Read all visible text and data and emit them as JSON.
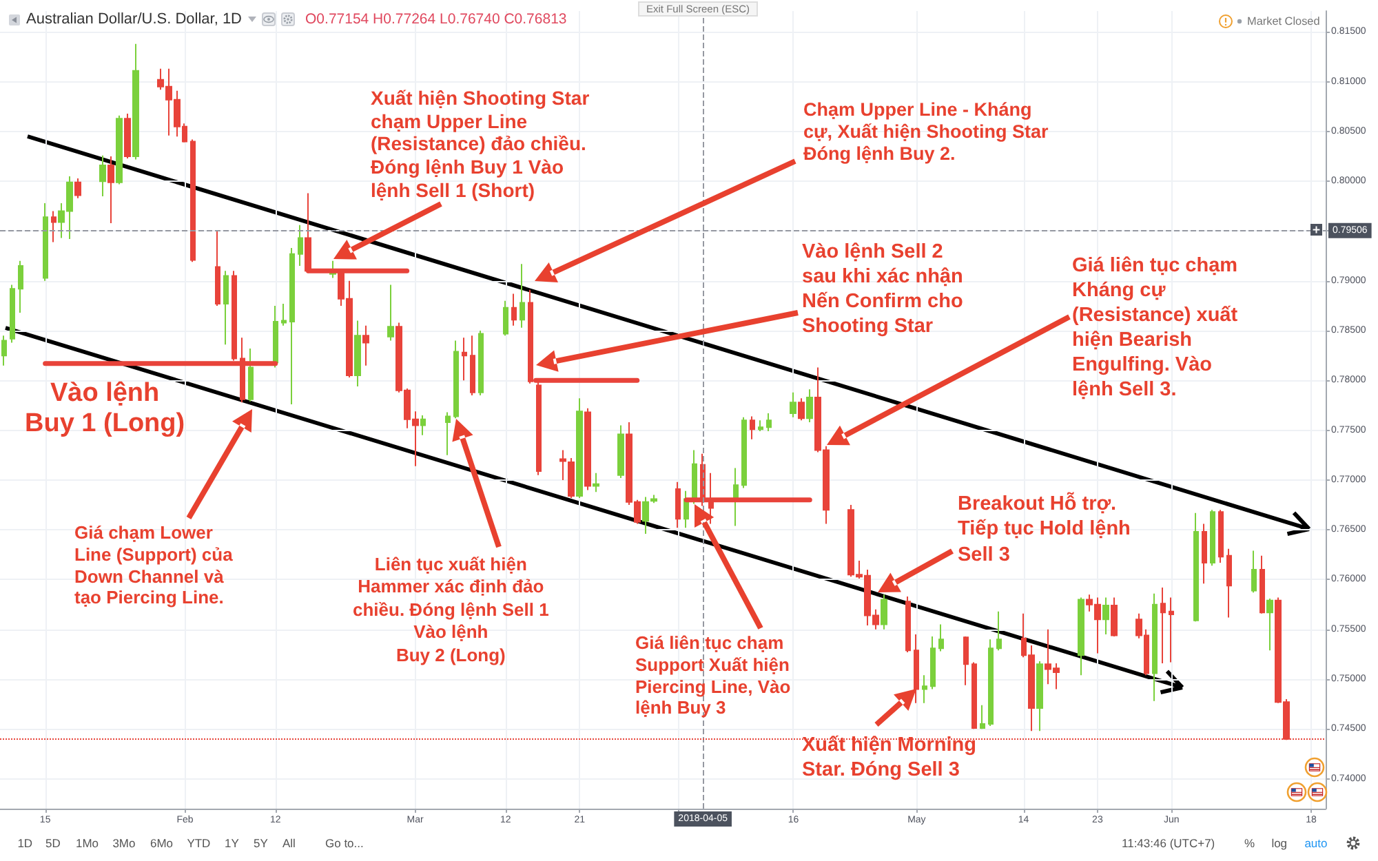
{
  "chart_data": {
    "type": "candlestick",
    "title": "Australian Dollar/U.S. Dollar, 1D",
    "subtitle": "O0.77154 H0.77264 L0.76740 C0.76813",
    "xlim": [
      "2018-01-09T12:00",
      "2018-06-19T18:00"
    ],
    "xticks": [
      {
        "value": "2018-01-15",
        "label": "15"
      },
      {
        "value": "2018-02-01",
        "label": "Feb"
      },
      {
        "value": "2018-02-12",
        "label": "12"
      },
      {
        "value": "2018-03-01",
        "label": "Mar"
      },
      {
        "value": "2018-03-12",
        "label": "12"
      },
      {
        "value": "2018-03-21",
        "label": "21"
      },
      {
        "value": "2018-04-02",
        "label": null
      },
      {
        "value": "2018-04-16",
        "label": "16"
      },
      {
        "value": "2018-05-01",
        "label": "May"
      },
      {
        "value": "2018-05-14",
        "label": "14"
      },
      {
        "value": "2018-05-23",
        "label": "23"
      },
      {
        "value": "2018-06-01",
        "label": "Jun"
      },
      {
        "value": "2018-06-18",
        "label": "18"
      }
    ],
    "ylim": [
      0.737,
      0.8171
    ],
    "yticks": [
      {
        "value": 0.74,
        "label": "0.74000"
      },
      {
        "value": 0.745,
        "label": "0.74500"
      },
      {
        "value": 0.75,
        "label": "0.75000"
      },
      {
        "value": 0.755,
        "label": "0.75500"
      },
      {
        "value": 0.76,
        "label": "0.76000"
      },
      {
        "value": 0.765,
        "label": "0.76500"
      },
      {
        "value": 0.77,
        "label": "0.77000"
      },
      {
        "value": 0.775,
        "label": "0.77500"
      },
      {
        "value": 0.78,
        "label": "0.78000"
      },
      {
        "value": 0.785,
        "label": "0.78500"
      },
      {
        "value": 0.79,
        "label": "0.79000"
      },
      {
        "value": 0.795,
        "label": null
      },
      {
        "value": 0.8,
        "label": "0.80000"
      },
      {
        "value": 0.805,
        "label": "0.80500"
      },
      {
        "value": 0.81,
        "label": "0.81000"
      },
      {
        "value": 0.815,
        "label": "0.81500"
      }
    ],
    "grid": true,
    "marker": "none",
    "line_style": "solid",
    "series": [
      {
        "x": [
          "2018-01-10",
          "2018-01-11",
          "2018-01-12",
          "2018-01-15",
          "2018-01-16",
          "2018-01-17",
          "2018-01-18",
          "2018-01-19",
          "2018-01-22",
          "2018-01-23",
          "2018-01-24",
          "2018-01-25",
          "2018-01-26",
          "2018-01-29",
          "2018-01-30",
          "2018-01-31",
          "2018-02-01",
          "2018-02-02",
          "2018-02-05",
          "2018-02-06",
          "2018-02-07",
          "2018-02-08",
          "2018-02-09",
          "2018-02-12",
          "2018-02-13",
          "2018-02-14",
          "2018-02-15",
          "2018-02-16",
          "2018-02-19",
          "2018-02-20",
          "2018-02-21",
          "2018-02-22",
          "2018-02-23",
          "2018-02-26",
          "2018-02-27",
          "2018-02-28",
          "2018-03-01",
          "2018-03-02",
          "2018-03-05",
          "2018-03-06",
          "2018-03-07",
          "2018-03-08",
          "2018-03-09",
          "2018-03-12",
          "2018-03-13",
          "2018-03-14",
          "2018-03-15",
          "2018-03-16",
          "2018-03-19",
          "2018-03-20",
          "2018-03-21",
          "2018-03-22",
          "2018-03-23",
          "2018-03-26",
          "2018-03-27",
          "2018-03-28",
          "2018-03-29",
          "2018-03-30",
          "2018-04-02",
          "2018-04-03",
          "2018-04-04",
          "2018-04-05",
          "2018-04-06",
          "2018-04-09",
          "2018-04-10",
          "2018-04-11",
          "2018-04-12",
          "2018-04-13",
          "2018-04-16",
          "2018-04-17",
          "2018-04-18",
          "2018-04-19",
          "2018-04-20",
          "2018-04-23",
          "2018-04-24",
          "2018-04-25",
          "2018-04-26",
          "2018-04-27",
          "2018-04-30",
          "2018-05-01",
          "2018-05-02",
          "2018-05-03",
          "2018-05-04",
          "2018-05-07",
          "2018-05-08",
          "2018-05-09",
          "2018-05-10",
          "2018-05-11",
          "2018-05-14",
          "2018-05-15",
          "2018-05-16",
          "2018-05-17",
          "2018-05-18",
          "2018-05-21",
          "2018-05-22",
          "2018-05-23",
          "2018-05-24",
          "2018-05-25",
          "2018-05-28",
          "2018-05-29",
          "2018-05-30",
          "2018-05-31",
          "2018-06-01",
          "2018-06-04",
          "2018-06-05",
          "2018-06-06",
          "2018-06-07",
          "2018-06-08",
          "2018-06-11",
          "2018-06-12",
          "2018-06-13",
          "2018-06-14",
          "2018-06-15"
        ],
        "ohlc": [
          [
            0.7825,
            0.7845,
            0.7815,
            0.784
          ],
          [
            0.7842,
            0.7896,
            0.7838,
            0.7892
          ],
          [
            0.7892,
            0.792,
            0.7868,
            0.7915
          ],
          [
            0.7903,
            0.7978,
            0.79,
            0.7964
          ],
          [
            0.7964,
            0.797,
            0.7939,
            0.7959
          ],
          [
            0.7959,
            0.7978,
            0.7943,
            0.797
          ],
          [
            0.797,
            0.8005,
            0.7942,
            0.7999
          ],
          [
            0.7999,
            0.8003,
            0.7983,
            0.7986
          ],
          [
            0.8,
            0.8026,
            0.7985,
            0.8016
          ],
          [
            0.8016,
            0.8025,
            0.7958,
            0.7999
          ],
          [
            0.7999,
            0.8066,
            0.7997,
            0.8063
          ],
          [
            0.8063,
            0.8068,
            0.8023,
            0.8025
          ],
          [
            0.8025,
            0.8138,
            0.8022,
            0.8111
          ],
          [
            0.8102,
            0.8113,
            0.8092,
            0.8095
          ],
          [
            0.8095,
            0.8113,
            0.8046,
            0.8082
          ],
          [
            0.8082,
            0.8091,
            0.8045,
            0.8055
          ],
          [
            0.8055,
            0.8058,
            0.8039,
            0.804
          ],
          [
            0.804,
            0.8042,
            0.7919,
            0.7921
          ],
          [
            0.7914,
            0.795,
            0.7875,
            0.7877
          ],
          [
            0.7877,
            0.791,
            0.7836,
            0.7905
          ],
          [
            0.7905,
            0.791,
            0.782,
            0.7822
          ],
          [
            0.7822,
            0.7843,
            0.7778,
            0.7781
          ],
          [
            0.7781,
            0.7832,
            0.7779,
            0.7813
          ],
          [
            0.7818,
            0.7875,
            0.7813,
            0.7859
          ],
          [
            0.7858,
            0.7877,
            0.7855,
            0.786
          ],
          [
            0.7859,
            0.7933,
            0.7776,
            0.7927
          ],
          [
            0.7927,
            0.7956,
            0.7915,
            0.7943
          ],
          [
            0.7943,
            0.7988,
            0.7908,
            0.791
          ],
          [
            0.7907,
            0.792,
            0.7903,
            0.7909
          ],
          [
            0.791,
            0.7912,
            0.7875,
            0.7882
          ],
          [
            0.7882,
            0.79,
            0.7803,
            0.7805
          ],
          [
            0.7805,
            0.786,
            0.7794,
            0.7845
          ],
          [
            0.7845,
            0.7855,
            0.7815,
            0.7838
          ],
          [
            0.7844,
            0.7896,
            0.784,
            0.7854
          ],
          [
            0.7854,
            0.7858,
            0.7788,
            0.779
          ],
          [
            0.779,
            0.7792,
            0.7752,
            0.7761
          ],
          [
            0.7761,
            0.7769,
            0.7714,
            0.7755
          ],
          [
            0.7755,
            0.7765,
            0.7745,
            0.7761
          ],
          [
            0.7758,
            0.7768,
            0.7725,
            0.7764
          ],
          [
            0.7764,
            0.784,
            0.7762,
            0.7829
          ],
          [
            0.7828,
            0.7843,
            0.78,
            0.7825
          ],
          [
            0.7825,
            0.7845,
            0.7785,
            0.7788
          ],
          [
            0.7788,
            0.785,
            0.7785,
            0.7847
          ],
          [
            0.7847,
            0.788,
            0.7845,
            0.7873
          ],
          [
            0.7873,
            0.7887,
            0.7855,
            0.7861
          ],
          [
            0.7861,
            0.7917,
            0.7853,
            0.7878
          ],
          [
            0.7878,
            0.7891,
            0.7797,
            0.7799
          ],
          [
            0.7795,
            0.78,
            0.7705,
            0.7709
          ],
          [
            0.7721,
            0.773,
            0.77,
            0.7719
          ],
          [
            0.7718,
            0.7722,
            0.7682,
            0.7684
          ],
          [
            0.7684,
            0.7782,
            0.7682,
            0.7769
          ],
          [
            0.7768,
            0.7772,
            0.769,
            0.7694
          ],
          [
            0.7694,
            0.7707,
            0.7688,
            0.7696
          ],
          [
            0.7705,
            0.7755,
            0.7702,
            0.7746
          ],
          [
            0.7746,
            0.7758,
            0.7675,
            0.7678
          ],
          [
            0.7678,
            0.768,
            0.7656,
            0.7658
          ],
          [
            0.7659,
            0.7683,
            0.7646,
            0.7678
          ],
          [
            0.7679,
            0.7685,
            0.7677,
            0.7681
          ],
          [
            0.7691,
            0.7698,
            0.7652,
            0.7661
          ],
          [
            0.7661,
            0.7689,
            0.7652,
            0.7681
          ],
          [
            0.7681,
            0.773,
            0.7676,
            0.7716
          ],
          [
            0.77154,
            0.77264,
            0.7674,
            0.76813
          ],
          [
            0.7681,
            0.7707,
            0.7656,
            0.7672
          ],
          [
            0.7681,
            0.7712,
            0.7654,
            0.7695
          ],
          [
            0.7695,
            0.7763,
            0.7692,
            0.776
          ],
          [
            0.776,
            0.7764,
            0.7741,
            0.7751
          ],
          [
            0.7751,
            0.776,
            0.7749,
            0.7753
          ],
          [
            0.7753,
            0.7767,
            0.7749,
            0.776
          ],
          [
            0.7767,
            0.7788,
            0.7763,
            0.7778
          ],
          [
            0.7778,
            0.7782,
            0.776,
            0.7762
          ],
          [
            0.7762,
            0.7791,
            0.7758,
            0.7783
          ],
          [
            0.7783,
            0.7813,
            0.7728,
            0.773
          ],
          [
            0.773,
            0.7734,
            0.7656,
            0.767
          ],
          [
            0.767,
            0.7675,
            0.7603,
            0.7605
          ],
          [
            0.7605,
            0.7619,
            0.7601,
            0.7603
          ],
          [
            0.7604,
            0.761,
            0.7554,
            0.7564
          ],
          [
            0.7564,
            0.757,
            0.755,
            0.7555
          ],
          [
            0.7555,
            0.7585,
            0.755,
            0.758
          ],
          [
            0.7578,
            0.7583,
            0.7527,
            0.7529
          ],
          [
            0.7529,
            0.7545,
            0.7476,
            0.749
          ],
          [
            0.749,
            0.7504,
            0.7476,
            0.7493
          ],
          [
            0.7493,
            0.7543,
            0.749,
            0.7531
          ],
          [
            0.7531,
            0.7555,
            0.7528,
            0.754
          ],
          [
            0.7542,
            0.7543,
            0.7494,
            0.7515
          ],
          [
            0.7515,
            0.7517,
            0.745,
            0.7451
          ],
          [
            0.7451,
            0.7474,
            0.745,
            0.7455
          ],
          [
            0.7455,
            0.754,
            0.7453,
            0.7531
          ],
          [
            0.7531,
            0.7568,
            0.7529,
            0.754
          ],
          [
            0.7541,
            0.7566,
            0.7522,
            0.7524
          ],
          [
            0.7524,
            0.7534,
            0.7448,
            0.7471
          ],
          [
            0.7471,
            0.7518,
            0.7448,
            0.7515
          ],
          [
            0.7515,
            0.755,
            0.7495,
            0.751
          ],
          [
            0.7511,
            0.7516,
            0.749,
            0.7507
          ],
          [
            0.7524,
            0.7582,
            0.7504,
            0.758
          ],
          [
            0.758,
            0.7585,
            0.7568,
            0.7575
          ],
          [
            0.7575,
            0.7582,
            0.7526,
            0.756
          ],
          [
            0.756,
            0.7582,
            0.7545,
            0.7574
          ],
          [
            0.7574,
            0.7582,
            0.7543,
            0.7544
          ],
          [
            0.756,
            0.7566,
            0.7541,
            0.7544
          ],
          [
            0.7544,
            0.755,
            0.7504,
            0.7506
          ],
          [
            0.7506,
            0.7586,
            0.7478,
            0.7575
          ],
          [
            0.7576,
            0.7592,
            0.7516,
            0.7567
          ],
          [
            0.7568,
            0.7582,
            0.7517,
            0.7565
          ],
          [
            0.7559,
            0.7667,
            0.7558,
            0.7648
          ],
          [
            0.7648,
            0.7656,
            0.7596,
            0.7617
          ],
          [
            0.7617,
            0.767,
            0.7614,
            0.7668
          ],
          [
            0.7668,
            0.767,
            0.7617,
            0.7623
          ],
          [
            0.7624,
            0.7631,
            0.7562,
            0.7594
          ],
          [
            0.7589,
            0.7629,
            0.7587,
            0.761
          ],
          [
            0.761,
            0.7624,
            0.7566,
            0.7567
          ],
          [
            0.7567,
            0.7581,
            0.7529,
            0.7579
          ],
          [
            0.7579,
            0.7582,
            0.7476,
            0.7477
          ],
          [
            0.7477,
            0.748,
            0.7439,
            0.744
          ]
        ],
        "colors": [
          "#7bd03c",
          "#7bd03c",
          "#7bd03c",
          "#7bd03c",
          "#e8433a",
          "#7bd03c",
          "#7bd03c",
          "#e8433a",
          "#7bd03c",
          "#e8433a",
          "#7bd03c",
          "#e8433a",
          "#7bd03c",
          "#e8433a",
          "#e8433a",
          "#e8433a",
          "#e8433a",
          "#e8433a",
          "#e8433a",
          "#7bd03c",
          "#e8433a",
          "#e8433a",
          "#7bd03c",
          "#7bd03c",
          "#7bd03c",
          "#7bd03c",
          "#7bd03c",
          "#e8433a",
          "#7bd03c",
          "#e8433a",
          "#e8433a",
          "#7bd03c",
          "#e8433a",
          "#7bd03c",
          "#e8433a",
          "#e8433a",
          "#e8433a",
          "#7bd03c",
          "#7bd03c",
          "#7bd03c",
          "#e8433a",
          "#e8433a",
          "#7bd03c",
          "#7bd03c",
          "#e8433a",
          "#7bd03c",
          "#e8433a",
          "#e8433a",
          "#e8433a",
          "#e8433a",
          "#7bd03c",
          "#e8433a",
          "#7bd03c",
          "#7bd03c",
          "#e8433a",
          "#e8433a",
          "#7bd03c",
          "#7bd03c",
          "#e8433a",
          "#7bd03c",
          "#7bd03c",
          "#e8433a",
          "#e8433a",
          "#7bd03c",
          "#7bd03c",
          "#e8433a",
          "#7bd03c",
          "#7bd03c",
          "#7bd03c",
          "#e8433a",
          "#7bd03c",
          "#e8433a",
          "#e8433a",
          "#e8433a",
          "#e8433a",
          "#e8433a",
          "#e8433a",
          "#7bd03c",
          "#e8433a",
          "#e8433a",
          "#7bd03c",
          "#7bd03c",
          "#7bd03c",
          "#e8433a",
          "#e8433a",
          "#7bd03c",
          "#7bd03c",
          "#7bd03c",
          "#e8433a",
          "#e8433a",
          "#7bd03c",
          "#e8433a",
          "#e8433a",
          "#7bd03c",
          "#e8433a",
          "#e8433a",
          "#7bd03c",
          "#e8433a",
          "#e8433a",
          "#e8433a",
          "#7bd03c",
          "#e8433a",
          "#e8433a",
          "#7bd03c",
          "#e8433a",
          "#7bd03c",
          "#e8433a",
          "#e8433a",
          "#7bd03c",
          "#e8433a",
          "#7bd03c",
          "#e8433a",
          "#e8433a"
        ]
      },
      {
        "type": "line",
        "x": [
          "2018-01-15",
          "2018-02-12"
        ],
        "values": [
          0.7817,
          0.7817
        ],
        "color": "#e8433a"
      },
      {
        "type": "line",
        "x": [
          "2018-02-16",
          "2018-02-28"
        ],
        "values": [
          0.791,
          0.791
        ],
        "color": "#e8433a"
      },
      {
        "type": "line",
        "x": [
          "2018-03-15T16:00",
          "2018-03-28"
        ],
        "values": [
          0.78,
          0.78
        ],
        "color": "#e8433a"
      },
      {
        "type": "line",
        "x": [
          "2018-04-03",
          "2018-04-18"
        ],
        "values": [
          0.768,
          0.768
        ],
        "color": "#e8433a"
      }
    ],
    "ref_lines": [
      {
        "axis": "x",
        "value": "2018-04-05",
        "label": "2018-04-05",
        "line_style": "dashed",
        "color": "#9598a1"
      },
      {
        "axis": "y",
        "value": 0.79506,
        "label": "0.79506",
        "line_style": "dashed",
        "color": "#9598a1"
      },
      {
        "axis": "y",
        "value": 0.744,
        "line_style": "dotted",
        "color": "#e8433a"
      }
    ],
    "annotations": [
      "Vào lệnh\nBuy 1 (Long)",
      "Giá chạm Lower\nLine (Support) của\nDown Channel và\ntạo Piercing Line.",
      "Xuất hiện Shooting Star\nchạm Upper Line\n(Resistance) đảo chiều.\nĐóng lệnh Buy 1 Vào\nlệnh Sell 1 (Short)",
      "Chạm Upper Line - Kháng\ncự, Xuất hiện Shooting Star\nĐóng lệnh Buy 2.",
      "Vào lệnh Sell 2\nsau khi xác nhận\nNến Confirm cho\nShooting Star",
      "Liên tục xuất hiện\nHammer xác định đảo\nchiều. Đóng lệnh Sell 1\nVào lệnh\nBuy 2 (Long)",
      "Giá liên tục chạm\nSupport Xuất hiện\nPiercing Line, Vào\nlệnh Buy 3",
      "Giá liên tục chạm\nKháng cự\n(Resistance) xuất\nhiện Bearish\nEngulfing. Vào\nlệnh Sell 3.",
      "Breakout Hỗ trợ.\nTiếp tục Hold lệnh\nSell 3",
      "Xuất hiện Morning\nStar. Đóng Sell 3",
      "Exit Full Screen (ESC)",
      "Market Closed",
      "1D",
      "5D",
      "1Mo",
      "3Mo",
      "6Mo",
      "YTD",
      "1Y",
      "5Y",
      "All",
      "Go to...",
      "11:43:46 (UTC+7)",
      "%",
      "log",
      "auto"
    ]
  }
}
